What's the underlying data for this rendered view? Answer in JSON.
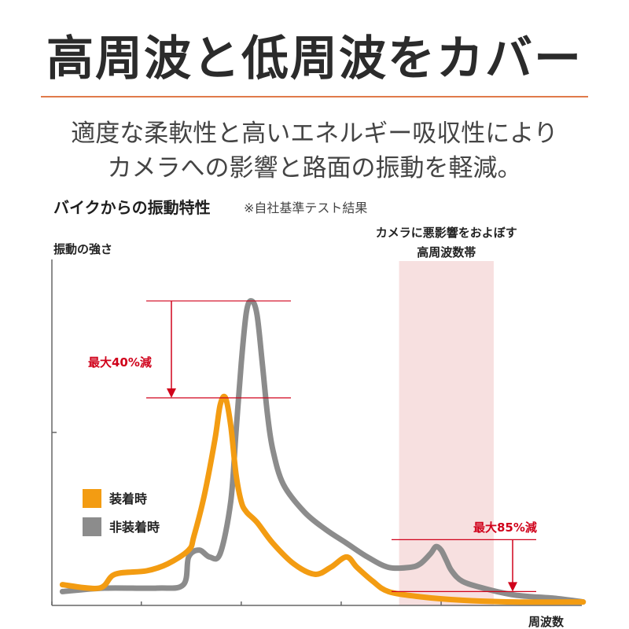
{
  "title": "高周波と低周波をカバー",
  "subtitle_line1": "適度な柔軟性と高いエネルギー吸収性により",
  "subtitle_line2": "カメラへの影響と路面の振動を軽減。",
  "chart_data": {
    "type": "line",
    "title": "バイクからの振動特性",
    "note": "※自社基準テスト結果",
    "ylabel": "振動の強さ",
    "xlabel": "周波数",
    "xlim": [
      0,
      100
    ],
    "ylim": [
      0,
      100
    ],
    "band": {
      "x0": 66,
      "x1": 84,
      "label_line1": "カメラに悪影響をおよぼす",
      "label_line2": "高周波数帯"
    },
    "annotations": [
      {
        "text": "最大40%減",
        "from": 88,
        "to": 60
      },
      {
        "text": "最大85%減",
        "from": 19,
        "to": 4
      }
    ],
    "series": [
      {
        "name": "非装着時",
        "color": "#8c8c8c",
        "x": [
          2,
          10,
          20,
          25,
          26,
          28,
          30,
          32,
          34,
          35,
          36,
          37,
          38,
          39,
          40,
          41,
          42,
          44,
          48,
          52,
          56,
          60,
          64,
          68,
          70,
          72,
          73,
          74,
          75,
          76,
          78,
          82,
          88,
          96,
          101
        ],
        "y": [
          4,
          5,
          5,
          6,
          14,
          16,
          14,
          15,
          30,
          50,
          70,
          85,
          88,
          84,
          70,
          55,
          45,
          35,
          27,
          22,
          18,
          14,
          11,
          11,
          12,
          15,
          17,
          16,
          13,
          10,
          7,
          5,
          3,
          2,
          1
        ]
      },
      {
        "name": "装着時",
        "color": "#f39c12",
        "x": [
          2,
          9,
          12,
          18,
          22,
          26,
          27,
          29,
          31,
          32,
          33,
          34,
          35,
          36,
          37,
          39,
          42,
          46,
          50,
          53,
          56,
          58,
          61,
          64,
          70,
          78,
          88,
          101
        ],
        "y": [
          6,
          5,
          9,
          10,
          12,
          16,
          20,
          32,
          48,
          58,
          60,
          52,
          38,
          30,
          27,
          24,
          18,
          12,
          9,
          11,
          14,
          11,
          7,
          4,
          2.5,
          1.5,
          1,
          1
        ]
      }
    ],
    "y_ticks": [
      50
    ],
    "x_ticks": [
      0,
      17,
      36,
      55,
      74
    ]
  }
}
